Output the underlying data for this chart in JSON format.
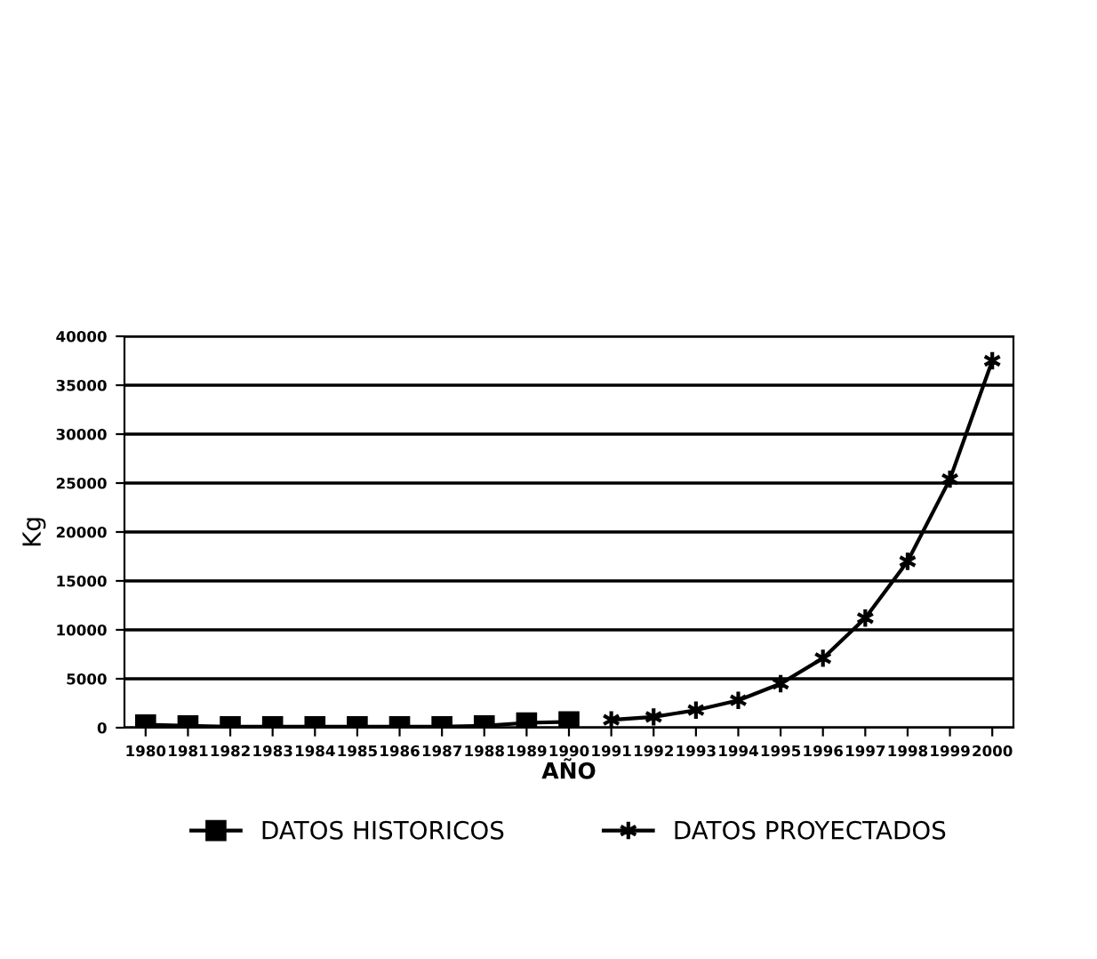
{
  "chart_data": {
    "type": "line",
    "xlabel": "AÑO",
    "ylabel": "Kg",
    "categories": [
      "1980",
      "1981",
      "1982",
      "1983",
      "1984",
      "1985",
      "1986",
      "1987",
      "1988",
      "1989",
      "1990",
      "1991",
      "1992",
      "1993",
      "1994",
      "1995",
      "1996",
      "1997",
      "1998",
      "1999",
      "2000"
    ],
    "series": [
      {
        "name": "DATOS HISTORICOS",
        "color": "#000000",
        "marker": "square",
        "values": [
          300,
          200,
          100,
          100,
          100,
          100,
          100,
          100,
          200,
          500,
          600,
          null,
          null,
          null,
          null,
          null,
          null,
          null,
          null,
          null,
          null
        ]
      },
      {
        "name": "DATOS PROYECTADOS",
        "color": "#000000",
        "marker": "cross",
        "values": [
          null,
          null,
          null,
          null,
          null,
          null,
          null,
          null,
          null,
          null,
          null,
          800,
          1100,
          1800,
          2800,
          4500,
          7100,
          11200,
          17000,
          25400,
          37500
        ]
      }
    ],
    "ylim": [
      0,
      40000
    ],
    "yticks": [
      0,
      5000,
      10000,
      15000,
      20000,
      25000,
      30000,
      35000,
      40000
    ],
    "grid": "y",
    "legend": "bottom",
    "line_style": "solid"
  }
}
